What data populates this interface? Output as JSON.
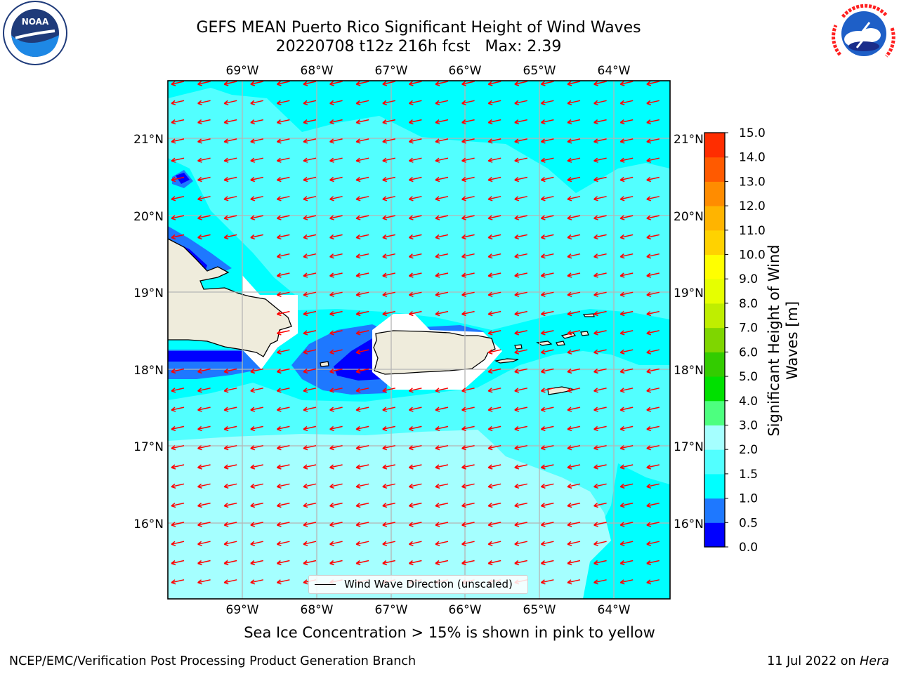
{
  "title": {
    "line1": "GEFS MEAN Puerto Rico Significant Height of Wind Waves",
    "line2": "20220708 t12z 216h fcst   Max: 2.39"
  },
  "logos": {
    "left": {
      "icon": "noaa-logo",
      "text": "NOAA",
      "ring_text": "NATIONAL OCEANIC AND ATMOSPHERIC ADMINISTRATION · U.S. DEPARTMENT OF COMMERCE"
    },
    "right": {
      "icon": "nws-logo",
      "ring_text": "NATIONAL WEATHER SERVICE"
    }
  },
  "map": {
    "lon_ticks": [
      "69°W",
      "68°W",
      "67°W",
      "66°W",
      "65°W",
      "64°W"
    ],
    "lat_ticks": [
      "21°N",
      "20°N",
      "19°N",
      "18°N",
      "17°N",
      "16°N"
    ],
    "lon_range": [
      -70.0,
      -63.25
    ],
    "lat_range": [
      15.0,
      21.75
    ],
    "arrow_direction": "toward west-southwest",
    "arrow_color": "#ff0000",
    "land_color": "#efecdc",
    "grid": true
  },
  "legend": {
    "label": "Wind Wave Direction (unscaled)"
  },
  "colorbar": {
    "label_line1": "Significant Height of Wind",
    "label_line2": "Waves [m]",
    "ticks": [
      "0.0",
      "0.5",
      "1.0",
      "1.5",
      "2.0",
      "3.0",
      "4.0",
      "5.0",
      "6.0",
      "7.0",
      "8.0",
      "9.0",
      "10.0",
      "11.0",
      "12.0",
      "13.0",
      "14.0",
      "15.0"
    ],
    "colors": [
      "#0000ff",
      "#1e78ff",
      "#00ffff",
      "#52ffff",
      "#a5ffff",
      "#4dff7f",
      "#00e000",
      "#33cc00",
      "#7fd600",
      "#bfee00",
      "#e6ff00",
      "#ffff00",
      "#ffd200",
      "#ffb400",
      "#ff8c00",
      "#ff5a00",
      "#ff2d00"
    ]
  },
  "field_colors": {
    "band_0_0_5": "#0000ff",
    "band_0_5_1_0": "#1e78ff",
    "band_1_0_1_5": "#00ffff",
    "band_1_5_2_0": "#52ffff",
    "band_2_0_3_0": "#a5ffff"
  },
  "footer": {
    "ice_note": "Sea Ice Concentration > 15% is shown in pink to yellow",
    "credit": "NCEP/EMC/Verification Post Processing Product Generation Branch",
    "date": "11 Jul 2022 on",
    "machine": "Hera"
  }
}
